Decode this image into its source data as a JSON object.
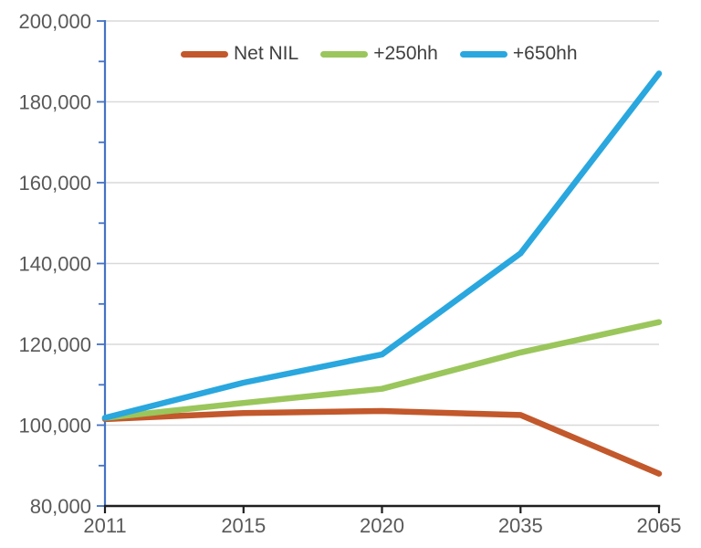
{
  "chart_data": {
    "type": "line",
    "title": "",
    "xlabel": "",
    "ylabel": "",
    "categories": [
      "2011",
      "2015",
      "2020",
      "2035",
      "2065"
    ],
    "series": [
      {
        "name": "Net NIL",
        "color": "#C2582B",
        "values": [
          101500,
          103000,
          103500,
          102500,
          88000
        ]
      },
      {
        "name": "+250hh",
        "color": "#9AC65C",
        "values": [
          101800,
          105500,
          109000,
          118000,
          125500
        ]
      },
      {
        "name": "+650hh",
        "color": "#29A7DE",
        "values": [
          101800,
          110500,
          117500,
          142500,
          187000
        ]
      }
    ],
    "ylim": [
      80000,
      200000
    ],
    "y_tick_step": 20000,
    "y_minor_tick_step": 10000,
    "y_tick_labels": [
      "80,000",
      "100,000",
      "120,000",
      "140,000",
      "160,000",
      "180,000",
      "200,000"
    ],
    "grid": "horizontal-major-only",
    "legend_position": "top-inside"
  },
  "colors": {
    "background": "#FFFFFF",
    "y_axis": "#4472C4",
    "x_axis": "#1F1F1F",
    "gridline": "#D9D9D9",
    "tick_label": "#595959",
    "legend_text": "#404040"
  }
}
